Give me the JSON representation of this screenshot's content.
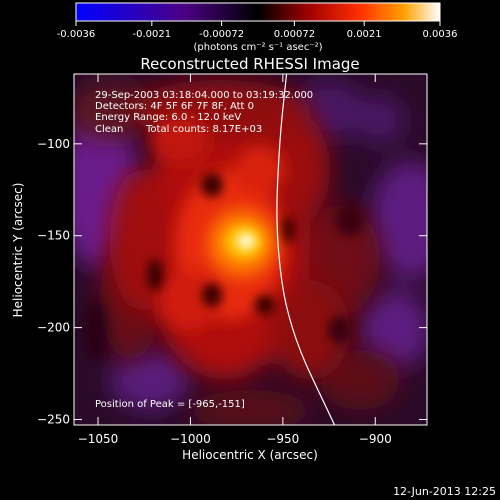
{
  "colorbar": {
    "tick_labels": [
      "-0.0036",
      "-0.0021",
      "-0.00072",
      "0.00072",
      "0.0021",
      "0.0036"
    ],
    "unit_label": "(photons cm⁻² s⁻¹ asec⁻²)",
    "range": [
      -0.0036,
      0.0036
    ]
  },
  "title": "Reconstructed RHESSI Image",
  "info": {
    "time_range": "29-Sep-2003 03:18:04.000 to 03:19:32.000",
    "detectors": "Detectors: 4F 5F 6F 7F 8F, Att 0",
    "energy": "Energy Range: 6.0 - 12.0 keV",
    "algorithm": "Clean",
    "counts": "Total counts: 8.17E+03"
  },
  "peak_label": "Position of Peak = [-965,-151]",
  "footer_date": "12-Jun-2013 12:25",
  "chart_data": {
    "type": "heatmap",
    "title": "Reconstructed RHESSI Image",
    "xlabel": "Heliocentric X (arcsec)",
    "ylabel": "Heliocentric Y (arcsec)",
    "xlim": [
      -1063,
      -872
    ],
    "ylim": [
      -253,
      -62
    ],
    "x_ticks": [
      -1050,
      -1000,
      -950,
      -900
    ],
    "y_ticks": [
      -100,
      -150,
      -200,
      -250
    ],
    "x_tick_labels": [
      "−1050",
      "−1000",
      "−950",
      "−900"
    ],
    "y_tick_labels": [
      "−100",
      "−150",
      "−200",
      "−250"
    ],
    "peak": {
      "x": -965,
      "y": -151,
      "value": 0.0036
    },
    "limb_curve": [
      [
        -948,
        -62
      ],
      [
        -952,
        -100
      ],
      [
        -954,
        -150
      ],
      [
        -947,
        -200
      ],
      [
        -922,
        -253
      ]
    ],
    "colormap": [
      "#0000ff",
      "#4b0082",
      "#000000",
      "#8b0000",
      "#ff2a00",
      "#ff9a00",
      "#ffff80",
      "#ffffff"
    ]
  }
}
